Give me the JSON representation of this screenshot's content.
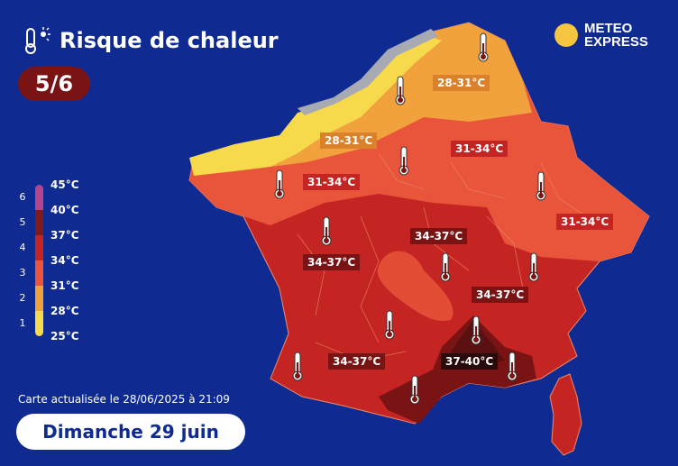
{
  "header": {
    "title": "Risque de chaleur",
    "risk_level": "5/6"
  },
  "brand": {
    "line1": "METEO",
    "line2": "EXPRESS"
  },
  "legend": {
    "levels": [
      "6",
      "5",
      "4",
      "3",
      "2",
      "1"
    ],
    "temps": [
      "45°C",
      "40°C",
      "37°C",
      "34°C",
      "31°C",
      "28°C",
      "25°C"
    ],
    "colors": [
      "#f7d94c",
      "#f2a23c",
      "#e8553a",
      "#c52522",
      "#7e1a1a",
      "#b4448b"
    ]
  },
  "footer": {
    "updated": "Carte actualisée le 28/06/2025 à 21:09",
    "date": "Dimanche 29 juin"
  },
  "zones": [
    {
      "id": "nord",
      "label": "28-31°C",
      "color": "#d9822b"
    },
    {
      "id": "normandie",
      "label": "28-31°C",
      "color": "#d9822b"
    },
    {
      "id": "centre-est",
      "label": "31-34°C",
      "color": "#c52522"
    },
    {
      "id": "centre-ouest",
      "label": "31-34°C",
      "color": "#c52522"
    },
    {
      "id": "alsace-alpes",
      "label": "31-34°C",
      "color": "#c52522"
    },
    {
      "id": "centre",
      "label": "34-37°C",
      "color": "#7a1414"
    },
    {
      "id": "aquitaine",
      "label": "34-37°C",
      "color": "#7a1414"
    },
    {
      "id": "rhone",
      "label": "34-37°C",
      "color": "#7a1414"
    },
    {
      "id": "sud-ouest",
      "label": "34-37°C",
      "color": "#7a1414"
    },
    {
      "id": "provence",
      "label": "37-40°C",
      "color": "#2a0a0a"
    }
  ]
}
